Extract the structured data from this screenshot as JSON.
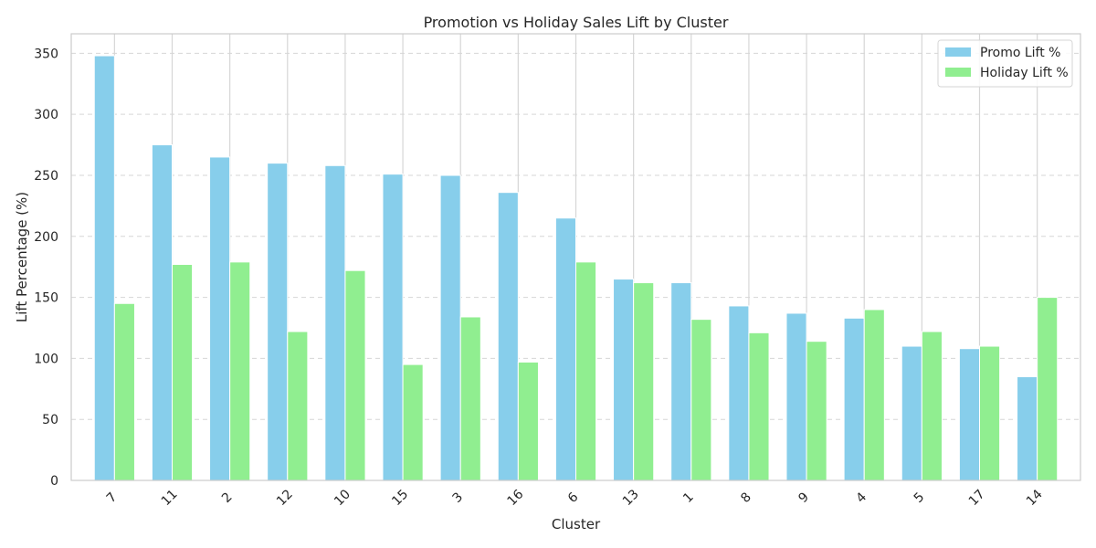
{
  "chart_data": {
    "type": "bar",
    "title": "Promotion vs Holiday Sales Lift by Cluster",
    "xlabel": "Cluster",
    "ylabel": "Lift Percentage (%)",
    "categories": [
      "7",
      "11",
      "2",
      "12",
      "10",
      "15",
      "3",
      "16",
      "6",
      "13",
      "1",
      "8",
      "9",
      "4",
      "5",
      "17",
      "14"
    ],
    "series": [
      {
        "name": "Promo Lift %",
        "color": "#87ceeb",
        "values": [
          348,
          275,
          265,
          260,
          258,
          251,
          250,
          236,
          215,
          165,
          162,
          143,
          137,
          133,
          110,
          108,
          85
        ]
      },
      {
        "name": "Holiday Lift %",
        "color": "#90ee90",
        "values": [
          145,
          177,
          179,
          122,
          172,
          95,
          134,
          97,
          179,
          162,
          132,
          121,
          114,
          140,
          122,
          110,
          150
        ]
      }
    ],
    "ylim": [
      0,
      366
    ],
    "yticks": [
      0,
      50,
      100,
      150,
      200,
      250,
      300,
      350
    ],
    "grid": true,
    "legend": "top-right"
  }
}
